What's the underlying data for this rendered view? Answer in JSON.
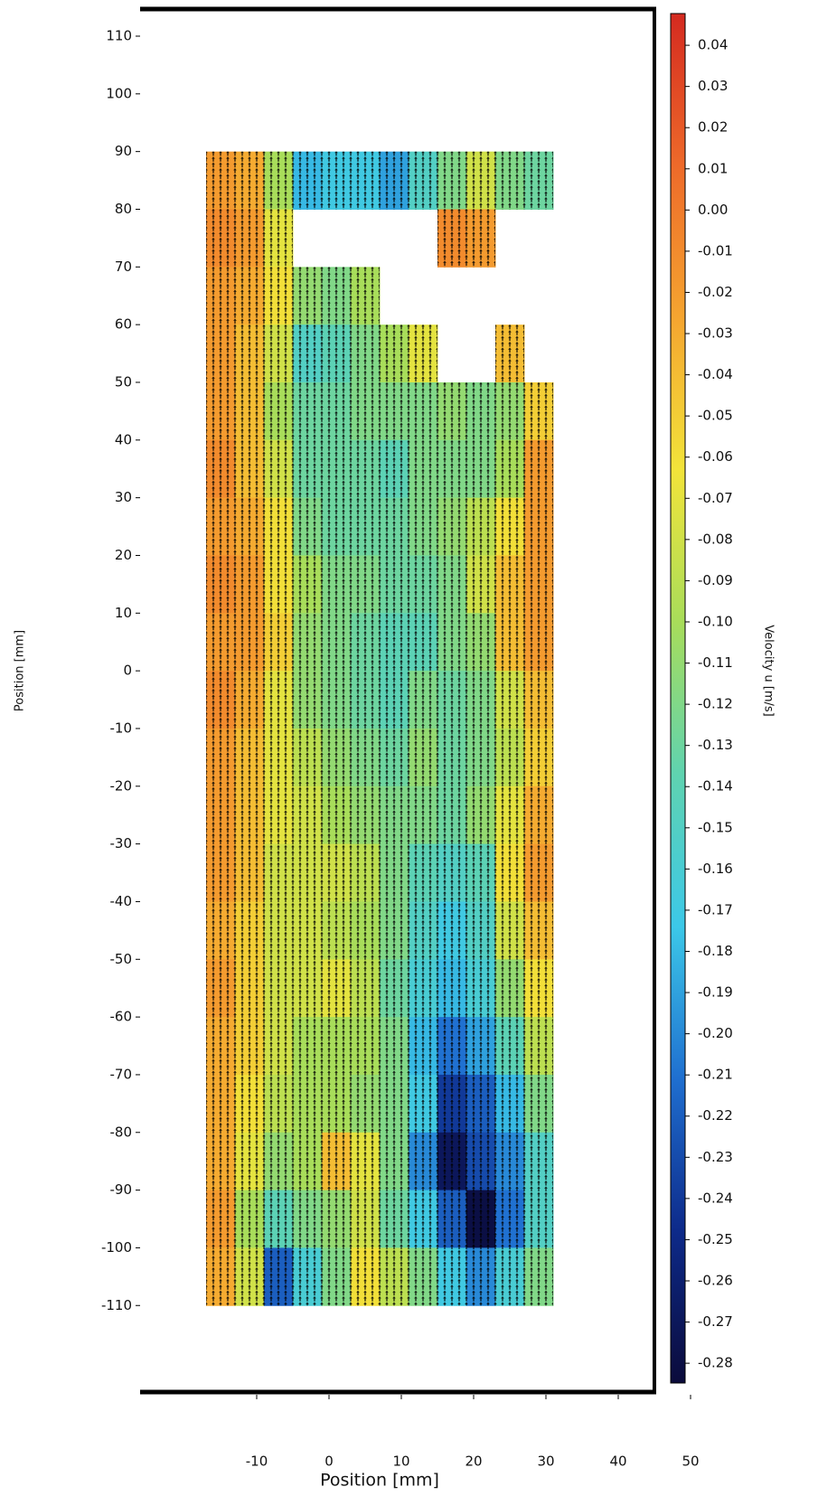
{
  "chart_data": {
    "type": "heatmap",
    "xlabel": "Position [mm]",
    "ylabel": "Position [mm]",
    "xlim": [
      -26,
      45
    ],
    "ylim": [
      -125,
      114.7
    ],
    "xticks": [
      -10,
      0,
      10,
      20,
      30,
      40,
      50
    ],
    "yticks": [
      110,
      100,
      90,
      80,
      70,
      60,
      50,
      40,
      30,
      20,
      10,
      0,
      -10,
      -20,
      -30,
      -40,
      -50,
      -60,
      -70,
      -80,
      -90,
      -100,
      -110
    ],
    "x": [
      -15,
      -11,
      -7,
      -3,
      1,
      5,
      9,
      13,
      17,
      21,
      25,
      29
    ],
    "y": [
      85,
      75,
      65,
      55,
      45,
      35,
      25,
      15,
      5,
      -5,
      -15,
      -25,
      -35,
      -45,
      -55,
      -65,
      -75,
      -85,
      -95,
      -105
    ],
    "values": [
      [
        -0.02,
        -0.03,
        -0.1,
        -0.18,
        -0.17,
        -0.17,
        -0.19,
        -0.15,
        -0.12,
        -0.08,
        -0.12,
        -0.13
      ],
      [
        -0.01,
        -0.02,
        -0.07,
        null,
        null,
        null,
        null,
        null,
        -0.01,
        -0.02,
        null,
        null
      ],
      [
        -0.02,
        -0.03,
        -0.06,
        -0.11,
        -0.12,
        -0.1,
        null,
        null,
        null,
        null,
        null,
        null
      ],
      [
        -0.02,
        -0.04,
        -0.08,
        -0.15,
        -0.14,
        -0.12,
        -0.1,
        -0.07,
        null,
        null,
        -0.04,
        null
      ],
      [
        -0.02,
        -0.04,
        -0.1,
        -0.13,
        -0.13,
        -0.12,
        -0.12,
        -0.12,
        -0.11,
        -0.12,
        -0.11,
        -0.05
      ],
      [
        -0.01,
        -0.04,
        -0.08,
        -0.13,
        -0.13,
        -0.13,
        -0.14,
        -0.12,
        -0.12,
        -0.12,
        -0.1,
        -0.02
      ],
      [
        -0.02,
        -0.03,
        -0.06,
        -0.12,
        -0.13,
        -0.13,
        -0.13,
        -0.12,
        -0.11,
        -0.09,
        -0.06,
        -0.02
      ],
      [
        -0.01,
        -0.02,
        -0.06,
        -0.1,
        -0.12,
        -0.12,
        -0.13,
        -0.13,
        -0.12,
        -0.08,
        -0.04,
        -0.02
      ],
      [
        -0.02,
        -0.02,
        -0.05,
        -0.11,
        -0.12,
        -0.13,
        -0.14,
        -0.14,
        -0.12,
        -0.11,
        -0.04,
        -0.02
      ],
      [
        -0.01,
        -0.03,
        -0.07,
        -0.11,
        -0.12,
        -0.13,
        -0.14,
        -0.12,
        -0.13,
        -0.12,
        -0.08,
        -0.04
      ],
      [
        -0.02,
        -0.04,
        -0.07,
        -0.09,
        -0.11,
        -0.12,
        -0.13,
        -0.11,
        -0.13,
        -0.12,
        -0.09,
        -0.05
      ],
      [
        -0.02,
        -0.04,
        -0.07,
        -0.08,
        -0.1,
        -0.11,
        -0.12,
        -0.12,
        -0.13,
        -0.11,
        -0.07,
        -0.03
      ],
      [
        -0.02,
        -0.04,
        -0.08,
        -0.08,
        -0.08,
        -0.09,
        -0.12,
        -0.14,
        -0.15,
        -0.14,
        -0.06,
        -0.02
      ],
      [
        -0.03,
        -0.05,
        -0.08,
        -0.08,
        -0.09,
        -0.1,
        -0.12,
        -0.15,
        -0.17,
        -0.15,
        -0.08,
        -0.04
      ],
      [
        -0.02,
        -0.05,
        -0.08,
        -0.08,
        -0.07,
        -0.09,
        -0.13,
        -0.16,
        -0.18,
        -0.16,
        -0.11,
        -0.06
      ],
      [
        -0.03,
        -0.05,
        -0.08,
        -0.1,
        -0.1,
        -0.1,
        -0.12,
        -0.18,
        -0.21,
        -0.19,
        -0.14,
        -0.09
      ],
      [
        -0.03,
        -0.06,
        -0.09,
        -0.1,
        -0.1,
        -0.11,
        -0.12,
        -0.17,
        -0.24,
        -0.22,
        -0.18,
        -0.12
      ],
      [
        -0.03,
        -0.07,
        -0.11,
        -0.1,
        -0.04,
        -0.07,
        -0.12,
        -0.2,
        -0.27,
        -0.23,
        -0.2,
        -0.15
      ],
      [
        -0.02,
        -0.1,
        -0.14,
        -0.12,
        -0.11,
        -0.08,
        -0.13,
        -0.17,
        -0.22,
        -0.28,
        -0.21,
        -0.15
      ],
      [
        -0.03,
        -0.08,
        -0.22,
        -0.16,
        -0.12,
        -0.06,
        -0.09,
        -0.12,
        -0.17,
        -0.2,
        -0.16,
        -0.12
      ]
    ],
    "colorbar": {
      "label": "Velocity u [m/s]",
      "lim": [
        -0.2848,
        0.0477
      ],
      "colormap": [
        "#0b0b3b",
        "#0d2a8a",
        "#1f6fd0",
        "#3cc8e8",
        "#5fd3b0",
        "#a8dd5a",
        "#f2e43a",
        "#f5a530",
        "#ee6a2a",
        "#d42a20"
      ],
      "ticks": [
        0.04,
        0.03,
        0.02,
        0.01,
        {
          "value": 0,
          "label": "0.00"
        },
        -0.01,
        -0.02,
        -0.03,
        -0.04,
        -0.05,
        -0.06,
        -0.07,
        -0.08,
        -0.09,
        {
          "value": -0.1,
          "label": "-0.10"
        },
        -0.11,
        -0.12,
        -0.13,
        -0.14,
        -0.15,
        -0.16,
        -0.17,
        -0.18,
        -0.19,
        {
          "value": -0.2,
          "label": "-0.20"
        },
        -0.21,
        -0.22,
        -0.23,
        -0.24,
        -0.25,
        -0.26,
        -0.27,
        -0.28
      ]
    }
  }
}
